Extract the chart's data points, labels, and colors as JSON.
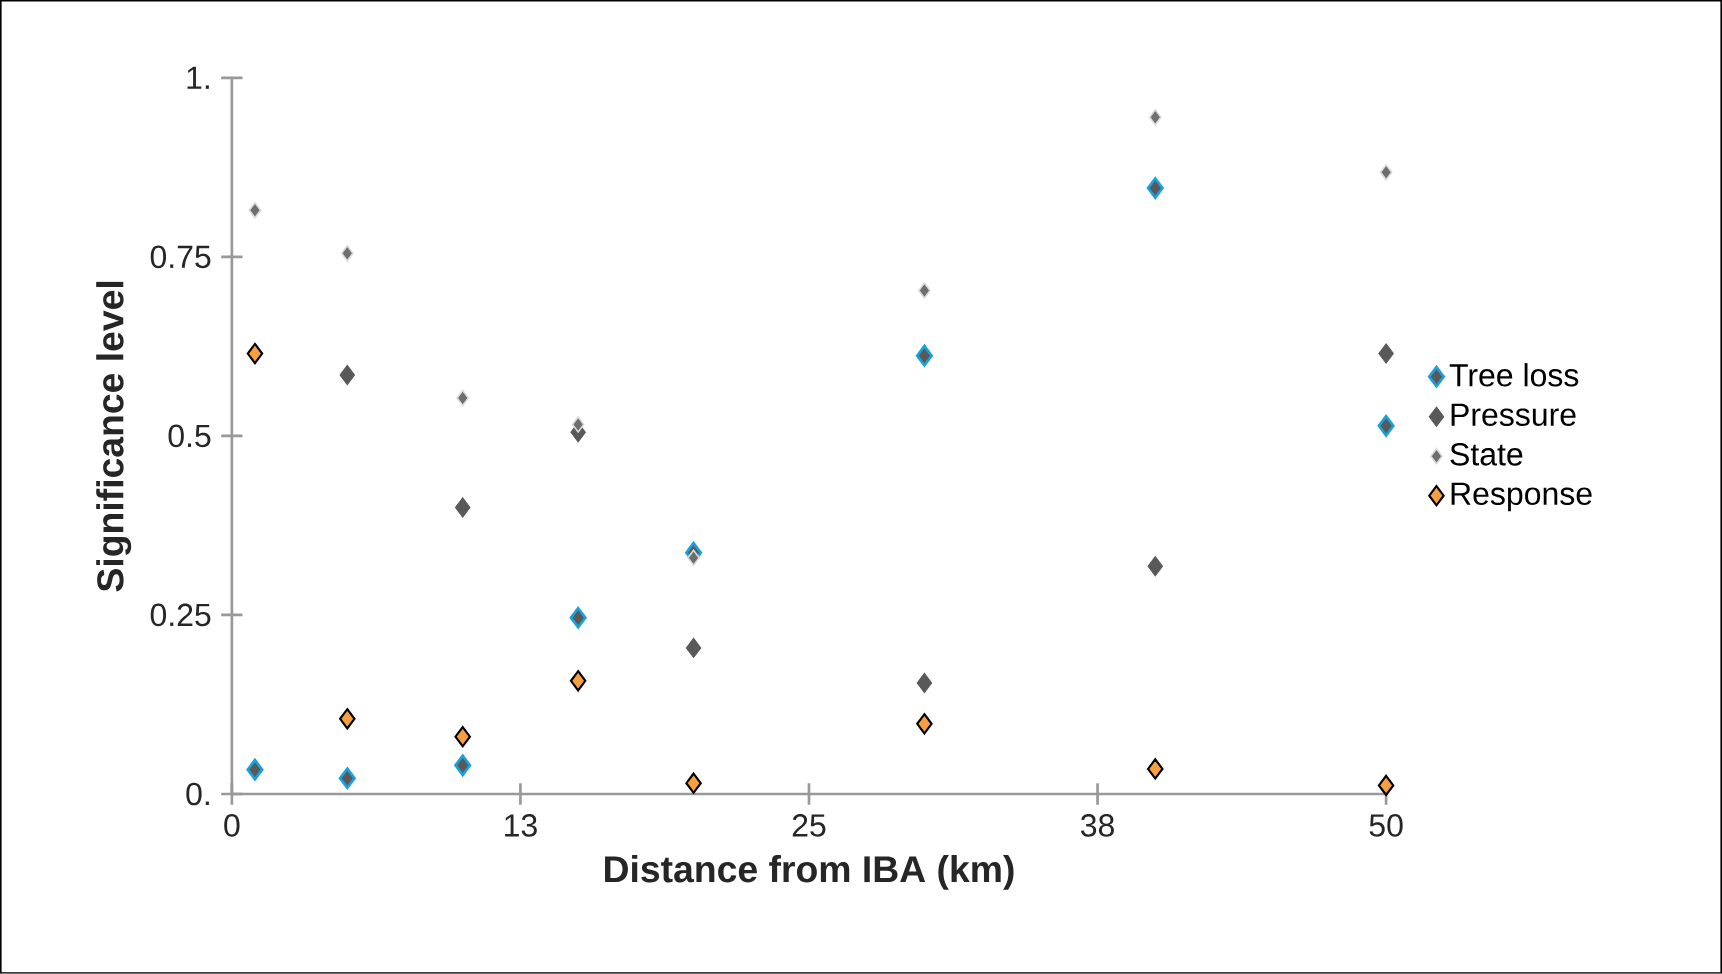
{
  "chart_data": {
    "type": "scatter",
    "xlabel": "Distance from IBA (km)",
    "ylabel": "Significance level",
    "x": [
      1,
      5,
      10,
      15,
      20,
      30,
      40,
      50
    ],
    "series": [
      {
        "name": "Tree loss",
        "color": "#1ba1d9",
        "values": [
          0.034,
          0.022,
          0.04,
          0.246,
          0.337,
          0.612,
          0.846,
          0.514
        ]
      },
      {
        "name": "Pressure",
        "color": "#595959",
        "values": [
          null,
          0.585,
          0.4,
          0.505,
          0.204,
          0.155,
          0.318,
          0.615
        ]
      },
      {
        "name": "State",
        "color": "#6e6e6e",
        "values": [
          0.815,
          0.755,
          0.553,
          0.516,
          0.33,
          0.703,
          0.945,
          0.868
        ]
      },
      {
        "name": "Response",
        "color": "#f7a040",
        "values": [
          0.615,
          0.105,
          0.08,
          0.158,
          0.015,
          0.098,
          0.035,
          0.012
        ]
      }
    ],
    "xlim": [
      0,
      50
    ],
    "ylim": [
      0,
      1
    ],
    "xticks": [
      0,
      {
        "value": 12.5,
        "label": "13"
      },
      25,
      {
        "value": 37.5,
        "label": "38"
      },
      50
    ],
    "yticks": [
      {
        "value": 0,
        "label": "0."
      },
      0.25,
      0.5,
      0.75,
      {
        "value": 1,
        "label": "1."
      }
    ],
    "grid": false,
    "legend": "right",
    "marker": "diamond"
  }
}
